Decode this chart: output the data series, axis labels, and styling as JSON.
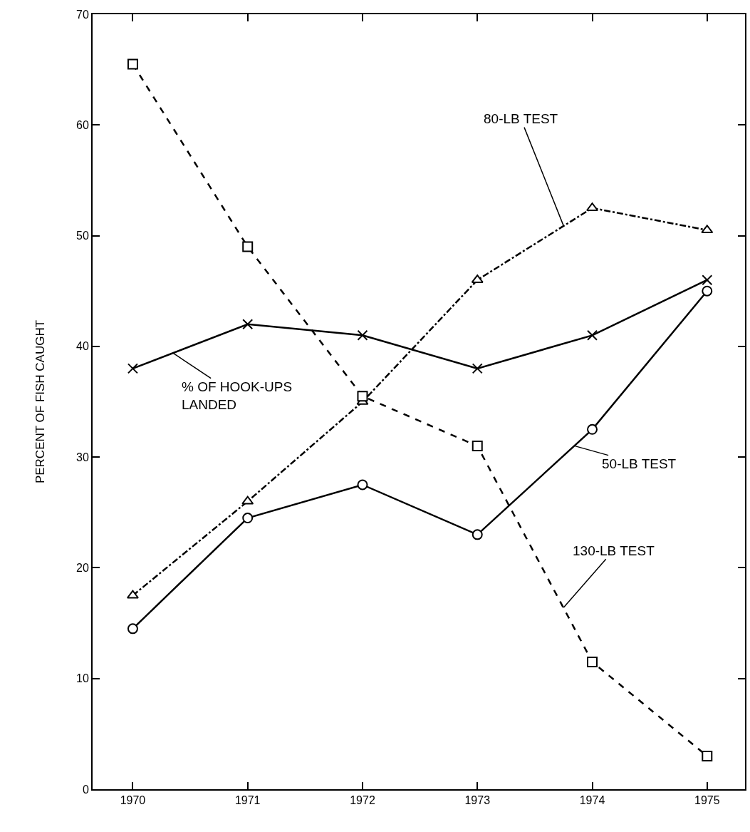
{
  "chart_data": {
    "type": "line",
    "ylabel": "PERCENT OF FISH CAUGHT",
    "x": [
      1970,
      1971,
      1972,
      1973,
      1974,
      1975
    ],
    "series": [
      {
        "color": "#000000",
        "marker": "circle",
        "line_style": "solid",
        "values": [
          14.5,
          24.5,
          27.5,
          23,
          32.5,
          45
        ]
      },
      {
        "color": "#000000",
        "marker": "cross",
        "line_style": "solid",
        "values": [
          38,
          42,
          41,
          38,
          41,
          46
        ]
      },
      {
        "color": "#000000",
        "marker": "triangle",
        "line_style": "dashdot",
        "values": [
          17.5,
          26,
          35,
          46,
          52.5,
          50.5
        ]
      },
      {
        "color": "#000000",
        "marker": "square",
        "line_style": "dashed",
        "values": [
          65.5,
          49,
          35.5,
          31,
          11.5,
          3
        ]
      }
    ],
    "xlim": [
      1969.65,
      1975.33
    ],
    "xticks": [
      1970,
      1971,
      1972,
      1973,
      1974,
      1975
    ],
    "ylim": [
      0,
      70
    ],
    "yticks": [
      0,
      10,
      20,
      30,
      40,
      50,
      60,
      70
    ],
    "annotations": [
      {
        "text": "80-LB TEST",
        "x": 1973.75,
        "y": 50.9
      },
      {
        "text": "% OF HOOK-UPS\nLANDED",
        "x": 1970.35,
        "y": 39.4
      },
      {
        "text": "50-LB TEST",
        "x": 1973.85,
        "y": 31
      },
      {
        "text": "130-LB TEST",
        "x": 1973.75,
        "y": 16.4
      }
    ]
  }
}
